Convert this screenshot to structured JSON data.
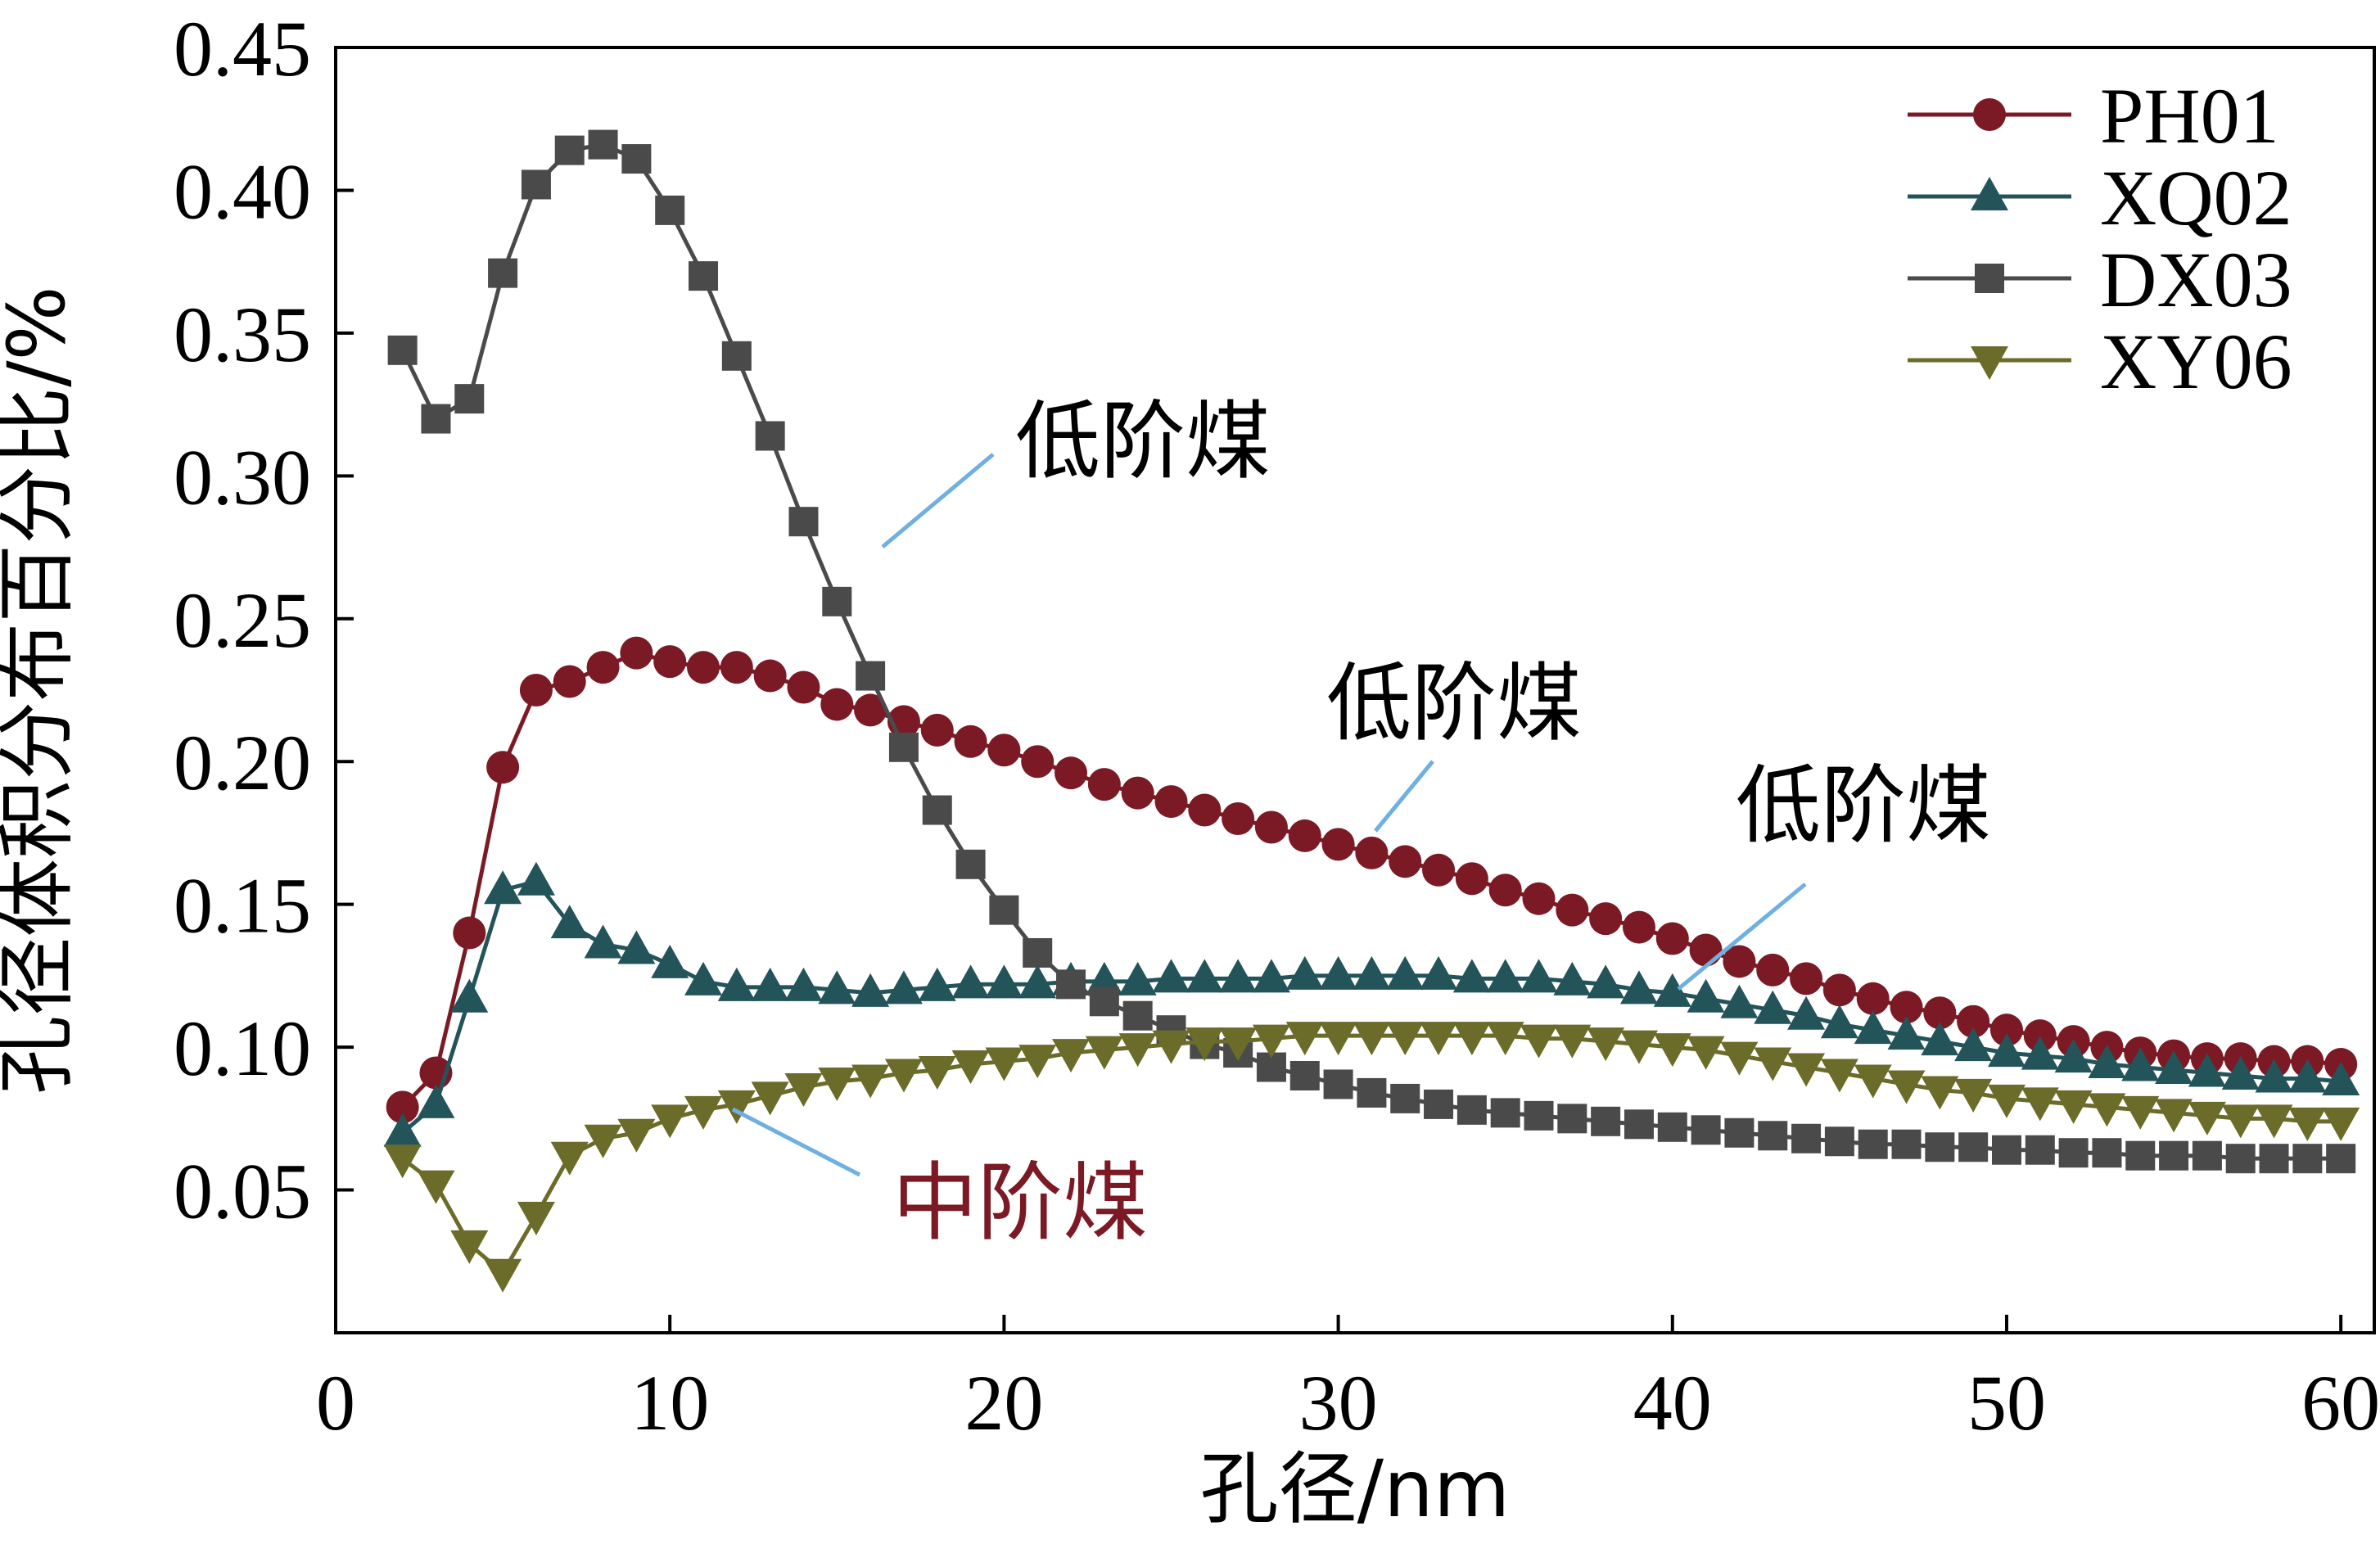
{
  "chart_data": {
    "type": "line",
    "title": "",
    "xlabel": "孔径/nm",
    "ylabel": "孔径体积分布百分比/%",
    "xlim": [
      0,
      61
    ],
    "ylim": [
      0,
      0.45
    ],
    "x_ticks": [
      0,
      10,
      20,
      30,
      40,
      50,
      60
    ],
    "x_tick_labels": [
      "0",
      "10",
      "20",
      "30",
      "40",
      "50",
      "60"
    ],
    "y_ticks": [
      0.05,
      0.1,
      0.15,
      0.2,
      0.25,
      0.3,
      0.35,
      0.4,
      0.45
    ],
    "y_tick_labels": [
      "0.05",
      "0.10",
      "0.15",
      "0.20",
      "0.25",
      "0.30",
      "0.35",
      "0.40",
      "0.45"
    ],
    "grid": false,
    "legend_position": "top-right",
    "x": [
      2,
      3,
      4,
      5,
      6,
      7,
      8,
      9,
      10,
      11,
      12,
      13,
      14,
      15,
      16,
      17,
      18,
      19,
      20,
      21,
      22,
      23,
      24,
      25,
      26,
      27,
      28,
      29,
      30,
      31,
      32,
      33,
      34,
      35,
      36,
      37,
      38,
      39,
      40,
      41,
      42,
      43,
      44,
      45,
      46,
      47,
      48,
      49,
      50,
      51,
      52,
      53,
      54,
      55,
      56,
      57,
      58,
      59,
      60
    ],
    "series": [
      {
        "name": "PH01",
        "color": "#7b1a24",
        "marker": "circle",
        "values": [
          0.079,
          0.091,
          0.14,
          0.198,
          0.225,
          0.228,
          0.233,
          0.238,
          0.235,
          0.233,
          0.233,
          0.23,
          0.226,
          0.22,
          0.218,
          0.214,
          0.211,
          0.207,
          0.204,
          0.2,
          0.196,
          0.192,
          0.189,
          0.186,
          0.183,
          0.18,
          0.177,
          0.174,
          0.171,
          0.168,
          0.165,
          0.162,
          0.159,
          0.155,
          0.152,
          0.148,
          0.145,
          0.142,
          0.138,
          0.134,
          0.13,
          0.127,
          0.124,
          0.12,
          0.117,
          0.114,
          0.112,
          0.109,
          0.106,
          0.104,
          0.102,
          0.1,
          0.098,
          0.097,
          0.096,
          0.096,
          0.095,
          0.095,
          0.094
        ]
      },
      {
        "name": "XQ02",
        "color": "#23545a",
        "marker": "triangle-up",
        "values": [
          0.07,
          0.08,
          0.117,
          0.155,
          0.158,
          0.143,
          0.136,
          0.134,
          0.129,
          0.123,
          0.121,
          0.121,
          0.121,
          0.12,
          0.119,
          0.12,
          0.121,
          0.122,
          0.122,
          0.122,
          0.123,
          0.123,
          0.123,
          0.124,
          0.124,
          0.124,
          0.124,
          0.125,
          0.125,
          0.125,
          0.125,
          0.125,
          0.124,
          0.124,
          0.124,
          0.123,
          0.122,
          0.12,
          0.119,
          0.117,
          0.115,
          0.113,
          0.111,
          0.108,
          0.106,
          0.104,
          0.102,
          0.1,
          0.098,
          0.097,
          0.096,
          0.094,
          0.093,
          0.092,
          0.091,
          0.09,
          0.089,
          0.089,
          0.088
        ]
      },
      {
        "name": "DX03",
        "color": "#4a4a4a",
        "marker": "square",
        "values": [
          0.344,
          0.32,
          0.327,
          0.371,
          0.402,
          0.414,
          0.416,
          0.411,
          0.393,
          0.37,
          0.342,
          0.314,
          0.284,
          0.256,
          0.23,
          0.205,
          0.183,
          0.164,
          0.148,
          0.133,
          0.122,
          0.116,
          0.111,
          0.106,
          0.101,
          0.098,
          0.093,
          0.09,
          0.087,
          0.084,
          0.082,
          0.08,
          0.078,
          0.077,
          0.076,
          0.075,
          0.074,
          0.073,
          0.072,
          0.071,
          0.07,
          0.069,
          0.068,
          0.067,
          0.066,
          0.066,
          0.065,
          0.065,
          0.064,
          0.064,
          0.063,
          0.063,
          0.062,
          0.062,
          0.062,
          0.061,
          0.061,
          0.061,
          0.061
        ]
      },
      {
        "name": "XY06",
        "color": "#6b6b2a",
        "marker": "triangle-down",
        "values": [
          0.061,
          0.052,
          0.031,
          0.021,
          0.041,
          0.062,
          0.068,
          0.07,
          0.075,
          0.078,
          0.08,
          0.083,
          0.086,
          0.088,
          0.089,
          0.091,
          0.092,
          0.094,
          0.095,
          0.096,
          0.098,
          0.099,
          0.1,
          0.101,
          0.102,
          0.102,
          0.103,
          0.104,
          0.104,
          0.104,
          0.104,
          0.104,
          0.104,
          0.104,
          0.103,
          0.103,
          0.102,
          0.101,
          0.1,
          0.099,
          0.097,
          0.095,
          0.093,
          0.091,
          0.089,
          0.087,
          0.085,
          0.084,
          0.082,
          0.081,
          0.08,
          0.079,
          0.078,
          0.077,
          0.076,
          0.075,
          0.075,
          0.074,
          0.074
        ]
      }
    ],
    "annotations": [
      {
        "text": "低阶煤",
        "color": "#000000",
        "target_series": "DX03"
      },
      {
        "text": "低阶煤",
        "color": "#000000",
        "target_series": "PH01"
      },
      {
        "text": "低阶煤",
        "color": "#000000",
        "target_series": "XQ02"
      },
      {
        "text": "中阶煤",
        "color": "#7b1a24",
        "target_series": "XY06"
      }
    ],
    "annotation_line_color": "#6fb0e0"
  }
}
